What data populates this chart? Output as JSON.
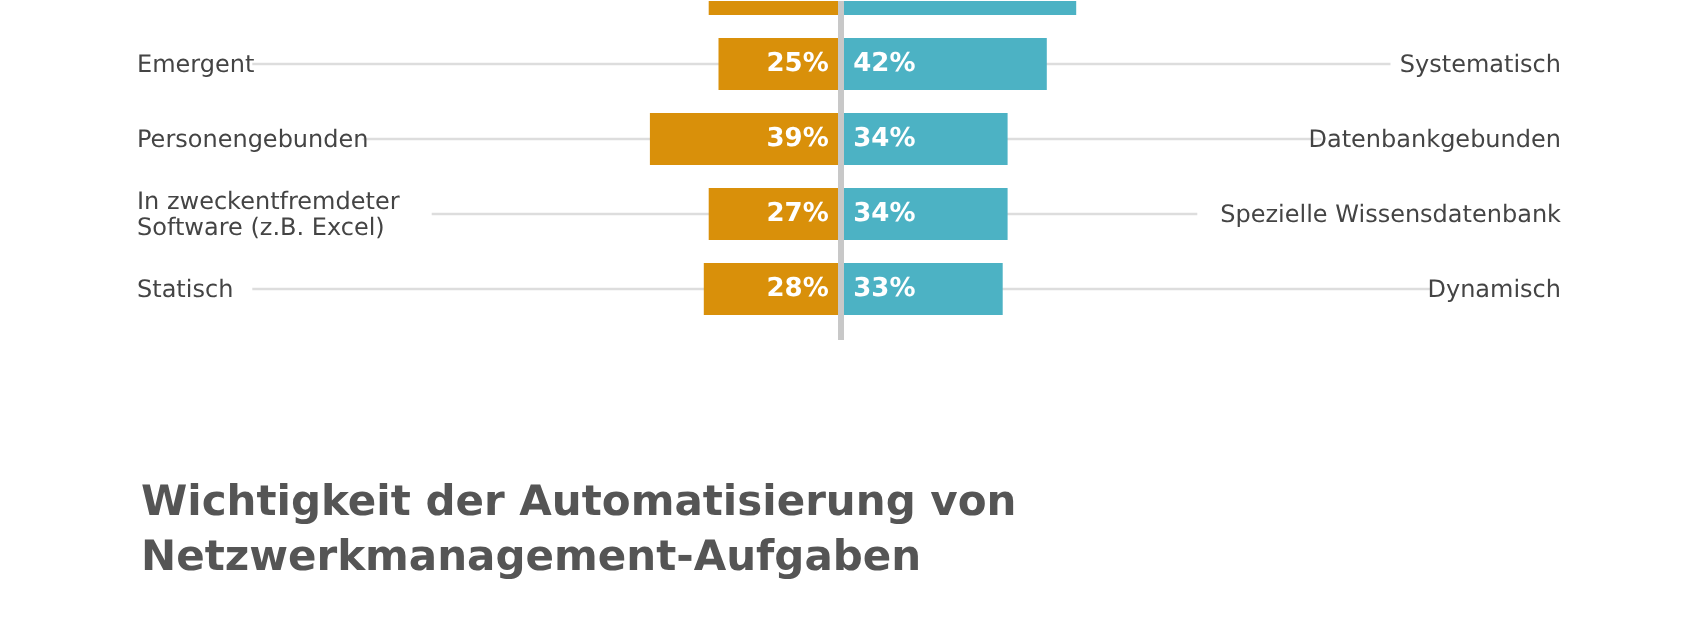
{
  "chart_data": [
    {
      "type": "bar",
      "orientation": "horizontal",
      "grid": "y",
      "categories": [
        null,
        "Emergent",
        "Personengebunden",
        "In zweckentfremdeter\nSoftware (z.B. Excel)",
        "Statisch"
      ],
      "series": [
        {
          "color": "#d9900a",
          "values": [
            27,
            25,
            39,
            27,
            28
          ],
          "value_labels": [
            null,
            "25%",
            "39%",
            "27%",
            "28%"
          ]
        }
      ]
    },
    {
      "type": "bar",
      "orientation": "horizontal",
      "grid": "y",
      "categories": [
        null,
        "Systematisch",
        "Datenbankgebunden",
        "Spezielle Wissensdatenbank",
        "Dynamisch"
      ],
      "series": [
        {
          "color": "#4cb2c4",
          "values": [
            48,
            42,
            34,
            34,
            33
          ],
          "value_labels": [
            null,
            "42%",
            "34%",
            "34%",
            "33%"
          ]
        }
      ]
    },
    {
      "type": "other",
      "title": "Wichtigkeit der Automatisierung von\nNetzwerkmanagement-Aufgaben"
    }
  ]
}
